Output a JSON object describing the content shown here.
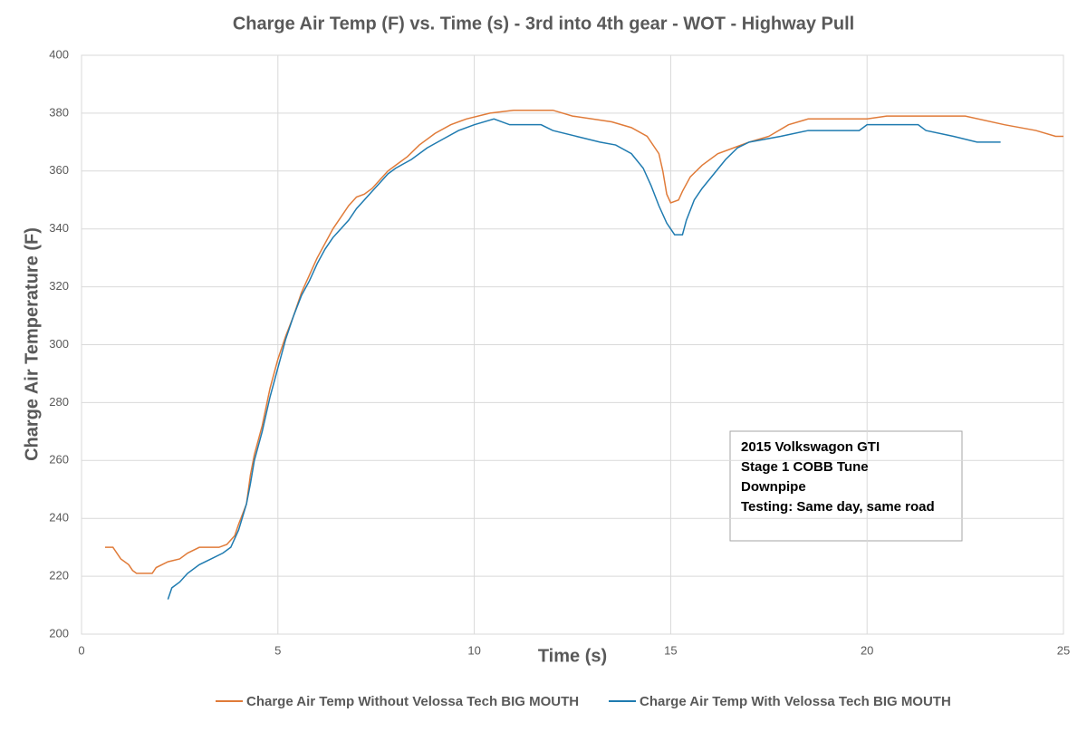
{
  "chart_data": {
    "type": "line",
    "title": "Charge Air Temp (F) vs. Time (s) - 3rd into 4th gear - WOT - Highway Pull",
    "x_label": "Time (s)",
    "y_label": "Charge Air Temperature (F)",
    "xlim": [
      0,
      25
    ],
    "xticks": [
      0,
      5,
      10,
      15,
      20,
      25
    ],
    "ylim": [
      200,
      400
    ],
    "yticks": [
      200,
      220,
      240,
      260,
      280,
      300,
      320,
      340,
      360,
      380,
      400
    ],
    "grid": true,
    "legend": "bottom",
    "annotation": [
      "2015 Volkswagon GTI",
      "Stage 1 COBB Tune",
      "Downpipe",
      "Testing: Same day, same road"
    ],
    "series": [
      {
        "name": "Charge Air Temp Without Velossa Tech BIG MOUTH",
        "color": "#e07b39",
        "x": [
          0.6,
          0.8,
          0.9,
          1.0,
          1.2,
          1.3,
          1.4,
          1.8,
          1.9,
          2.2,
          2.5,
          2.7,
          3.0,
          3.5,
          3.7,
          3.9,
          4.0,
          4.2,
          4.3,
          4.4,
          4.6,
          4.8,
          5.0,
          5.2,
          5.4,
          5.6,
          5.8,
          6.0,
          6.2,
          6.4,
          6.6,
          6.8,
          7.0,
          7.2,
          7.4,
          7.6,
          7.8,
          8.0,
          8.3,
          8.6,
          9.0,
          9.4,
          9.8,
          10.4,
          11,
          12,
          12.5,
          13.5,
          14,
          14.4,
          14.7,
          14.8,
          14.9,
          15.0,
          15.2,
          15.3,
          15.5,
          15.8,
          16.2,
          16.6,
          17,
          17.5,
          18,
          18.5,
          20,
          20.5,
          22.5,
          23.5,
          24.3,
          24.8,
          25
        ],
        "values": [
          230,
          230,
          228,
          226,
          224,
          222,
          221,
          221,
          223,
          225,
          226,
          228,
          230,
          230,
          231,
          234,
          238,
          245,
          255,
          262,
          272,
          285,
          295,
          303,
          310,
          318,
          324,
          330,
          335,
          340,
          344,
          348,
          351,
          352,
          354,
          357,
          360,
          362,
          365,
          369,
          373,
          376,
          378,
          380,
          381,
          381,
          379,
          377,
          375,
          372,
          366,
          360,
          352,
          349,
          350,
          353,
          358,
          362,
          366,
          368,
          370,
          372,
          376,
          378,
          378,
          379,
          379,
          376,
          374,
          372,
          372
        ]
      },
      {
        "name": "Charge Air Temp With Velossa Tech BIG MOUTH",
        "color": "#1f7bb0",
        "x": [
          2.2,
          2.3,
          2.5,
          2.7,
          3.0,
          3.3,
          3.6,
          3.8,
          4.0,
          4.2,
          4.3,
          4.4,
          4.6,
          4.8,
          5.0,
          5.2,
          5.4,
          5.6,
          5.8,
          6.0,
          6.2,
          6.4,
          6.6,
          6.8,
          7.0,
          7.2,
          7.4,
          7.6,
          7.8,
          8.0,
          8.4,
          8.8,
          9.2,
          9.6,
          10,
          10.5,
          10.9,
          11.7,
          12,
          12.6,
          13.2,
          13.6,
          14,
          14.3,
          14.5,
          14.7,
          14.9,
          15.0,
          15.1,
          15.3,
          15.4,
          15.6,
          15.8,
          16.1,
          16.4,
          16.7,
          17,
          17.8,
          18.5,
          19.8,
          20,
          21.3,
          21.5,
          22.2,
          22.8,
          23.4
        ],
        "values": [
          212,
          216,
          218,
          221,
          224,
          226,
          228,
          230,
          236,
          245,
          252,
          260,
          270,
          282,
          292,
          302,
          310,
          317,
          322,
          328,
          333,
          337,
          340,
          343,
          347,
          350,
          353,
          356,
          359,
          361,
          364,
          368,
          371,
          374,
          376,
          378,
          376,
          376,
          374,
          372,
          370,
          369,
          366,
          361,
          355,
          348,
          342,
          340,
          338,
          338,
          343,
          350,
          354,
          359,
          364,
          368,
          370,
          372,
          374,
          374,
          376,
          376,
          374,
          372,
          370,
          370
        ]
      }
    ]
  }
}
